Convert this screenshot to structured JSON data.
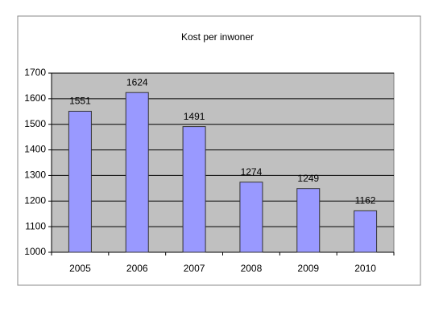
{
  "chart_data": {
    "type": "bar",
    "title": "Kost per inwoner",
    "categories": [
      "2005",
      "2006",
      "2007",
      "2008",
      "2009",
      "2010"
    ],
    "values": [
      1551,
      1624,
      1491,
      1274,
      1249,
      1162
    ],
    "color": "#9999ff",
    "ylim": [
      1000,
      1700
    ],
    "yticks": [
      1000,
      1100,
      1200,
      1300,
      1400,
      1500,
      1600,
      1700
    ],
    "grid": true
  }
}
